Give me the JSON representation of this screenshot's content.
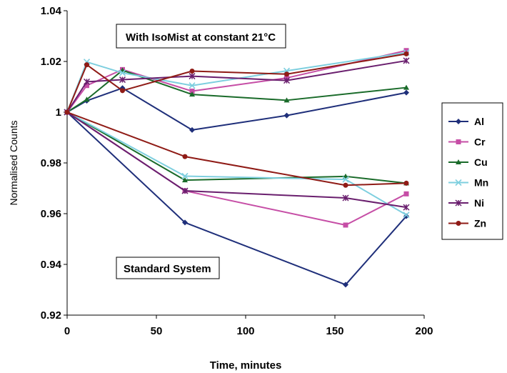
{
  "chart_data": {
    "type": "line",
    "xlabel": "Time, minutes",
    "ylabel": "Normalised Counts",
    "xlim": [
      0,
      200
    ],
    "ylim": [
      0.92,
      1.04
    ],
    "xticks": [
      "0",
      "50",
      "100",
      "150",
      "200"
    ],
    "yticks": [
      "0.92",
      "0.94",
      "0.96",
      "0.98",
      "1",
      "1.02",
      "1.04"
    ],
    "grid": false,
    "legend_position": "right",
    "annotations": [
      "With IsoMist at constant 21°C",
      "Standard System"
    ],
    "groups": [
      {
        "name": "With IsoMist at constant 21°C",
        "series": [
          {
            "name": "Al",
            "x": [
              0,
              11,
              31,
              70,
              123,
              190
            ],
            "y": [
              1.0,
              1.0045,
              1.0095,
              0.993,
              0.9987,
              1.0077
            ]
          },
          {
            "name": "Cr",
            "x": [
              0,
              11,
              31,
              70,
              123,
              190
            ],
            "y": [
              1.0,
              1.0105,
              1.0168,
              1.0083,
              1.0135,
              1.0243
            ]
          },
          {
            "name": "Cu",
            "x": [
              0,
              11,
              31,
              70,
              123,
              190
            ],
            "y": [
              1.0,
              1.005,
              1.0165,
              1.007,
              1.0047,
              1.0097
            ]
          },
          {
            "name": "Mn",
            "x": [
              0,
              11,
              31,
              70,
              123,
              190
            ],
            "y": [
              1.0,
              1.0198,
              1.0155,
              1.0105,
              1.0163,
              1.0235
            ]
          },
          {
            "name": "Ni",
            "x": [
              0,
              11,
              31,
              70,
              123,
              190
            ],
            "y": [
              1.0,
              1.012,
              1.0128,
              1.0142,
              1.0125,
              1.0203
            ]
          },
          {
            "name": "Zn",
            "x": [
              0,
              11,
              31,
              70,
              123,
              190
            ],
            "y": [
              1.0,
              1.0187,
              1.0085,
              1.0162,
              1.015,
              1.023
            ]
          }
        ]
      },
      {
        "name": "Standard System",
        "series": [
          {
            "name": "Al",
            "x": [
              0,
              66,
              156,
              190
            ],
            "y": [
              1.0,
              0.9565,
              0.932,
              0.959
            ]
          },
          {
            "name": "Cr",
            "x": [
              0,
              66,
              156,
              190
            ],
            "y": [
              1.0,
              0.969,
              0.9555,
              0.9678
            ]
          },
          {
            "name": "Cu",
            "x": [
              0,
              66,
              156,
              190
            ],
            "y": [
              1.0,
              0.9732,
              0.9747,
              0.972
            ]
          },
          {
            "name": "Mn",
            "x": [
              0,
              66,
              156,
              190
            ],
            "y": [
              1.0,
              0.9748,
              0.9735,
              0.9595
            ]
          },
          {
            "name": "Ni",
            "x": [
              0,
              66,
              156,
              190
            ],
            "y": [
              1.0,
              0.969,
              0.9662,
              0.9625
            ]
          },
          {
            "name": "Zn",
            "x": [
              0,
              66,
              156,
              190
            ],
            "y": [
              1.0,
              0.9825,
              0.9712,
              0.972
            ]
          }
        ]
      }
    ],
    "legend": [
      {
        "name": "Al",
        "color": "#1f2f7a",
        "marker": "diamond"
      },
      {
        "name": "Cr",
        "color": "#c64ea6",
        "marker": "square"
      },
      {
        "name": "Cu",
        "color": "#1a6b2a",
        "marker": "triangle"
      },
      {
        "name": "Mn",
        "color": "#7ecfdf",
        "marker": "x"
      },
      {
        "name": "Ni",
        "color": "#6a1f6e",
        "marker": "star"
      },
      {
        "name": "Zn",
        "color": "#8f1b16",
        "marker": "circle"
      }
    ]
  }
}
